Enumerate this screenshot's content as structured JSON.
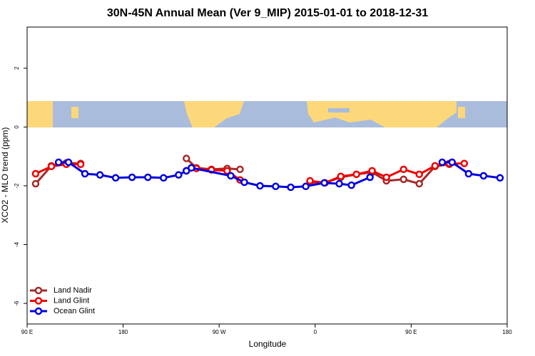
{
  "chart_data": {
    "type": "line",
    "title": "30N-45N Annual Mean (Ver 9_MIP)   2015-01-01 to 2018-12-31",
    "x_label": "Longitude",
    "y_label": "XCO2 - MLO trend (ppm)",
    "xlim": [
      90,
      540
    ],
    "ylim": [
      -6.7,
      3.4
    ],
    "xticks": [
      {
        "value": 90,
        "label": "90 E"
      },
      180,
      {
        "value": 270,
        "label": "90 W"
      },
      {
        "value": 360,
        "label": "0"
      },
      {
        "value": 450,
        "label": "90 E"
      },
      {
        "value": 540,
        "label": "180"
      }
    ],
    "yticks": [
      -6,
      -4,
      -2,
      0,
      2
    ],
    "legend": "bottom-left",
    "series": [
      {
        "name": "Land Nadir",
        "color": "#a52a2a",
        "x": [
          98,
          112.8,
          126.8,
          140.2,
          null,
          239.3,
          248.7,
          262.8,
          277.5,
          289.6,
          null,
          355.2,
          369.2,
          384,
          398.7,
          413.4,
          426.8,
          442.9,
          457.6,
          472.4,
          485.8
        ],
        "values": [
          -1.93,
          -1.32,
          -1.22,
          -1.24,
          null,
          -1.07,
          -1.39,
          -1.44,
          -1.41,
          -1.44,
          null,
          -1.88,
          -1.9,
          -1.71,
          -1.61,
          -1.54,
          -1.83,
          -1.78,
          -1.93,
          -1.34,
          -1.27
        ]
      },
      {
        "name": "Land Glint",
        "color": "#ee0000",
        "x": [
          98,
          112.8,
          126.8,
          140.2,
          null,
          239.3,
          248.7,
          262.8,
          277.5,
          289.6,
          null,
          355.2,
          369.2,
          384,
          398.7,
          413.4,
          426.8,
          442.9,
          457.6,
          472.4,
          485.8,
          499.8
        ],
        "values": [
          -1.59,
          -1.34,
          -1.27,
          -1.27,
          null,
          -1.49,
          -1.41,
          -1.46,
          -1.49,
          -1.8,
          null,
          -1.83,
          -1.9,
          -1.68,
          -1.61,
          -1.49,
          -1.71,
          -1.44,
          -1.61,
          -1.32,
          -1.24,
          -1.24
        ]
      },
      {
        "name": "Ocean Glint",
        "color": "#0000dd",
        "x": [
          119.5,
          128.8,
          144.2,
          158.3,
          173,
          188.4,
          203.2,
          217.9,
          232,
          239.3,
          244,
          280.9,
          293.6,
          308.3,
          323,
          337.1,
          351.2,
          368.6,
          382.6,
          394,
          411.4,
          null,
          479.1,
          488.4,
          503.8,
          517.9,
          533.3
        ],
        "values": [
          -1.2,
          -1.2,
          -1.59,
          -1.63,
          -1.73,
          -1.71,
          -1.71,
          -1.73,
          -1.63,
          -1.49,
          -1.39,
          -1.66,
          -1.88,
          -2.0,
          -2.02,
          -2.05,
          -2.02,
          -1.9,
          -1.93,
          -1.98,
          -1.71,
          null,
          -1.2,
          -1.2,
          -1.59,
          -1.66,
          -1.73
        ]
      }
    ]
  }
}
